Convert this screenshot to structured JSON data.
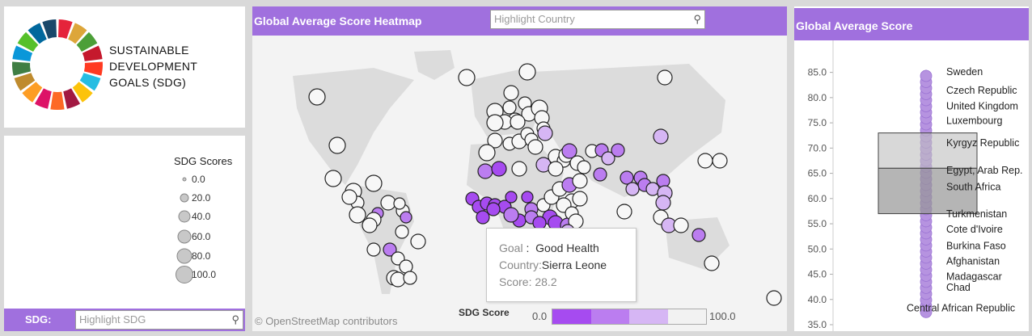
{
  "logo": {
    "title_lines": [
      "SUSTAINABLE",
      "DEVELOPMENT",
      "GOALS (SDG)"
    ]
  },
  "legend": {
    "title": "SDG Scores",
    "values": [
      "0.0",
      "20.0",
      "40.0",
      "60.0",
      "80.0",
      "100.0"
    ]
  },
  "sdg_filter": {
    "label": "SDG:",
    "placeholder": "Highlight SDG"
  },
  "map": {
    "title": "Global  Average Score Heatmap",
    "search_placeholder": "Highlight Country",
    "attribution": "© OpenStreetMap contributors",
    "score_legend": {
      "title": "SDG Score",
      "min": "0.0",
      "max": "100.0",
      "colors": [
        "#a64bf0",
        "#bb7df0",
        "#d6b6f4",
        "#f2f2f2"
      ]
    },
    "tooltip": {
      "goal_key": "Goal",
      "goal_sep": " :  ",
      "goal_value": "Good Health",
      "country_key": "Country:",
      "country_value": "Sierra Leone",
      "score_key": "Score:",
      "score_value": "28.2"
    }
  },
  "average_panel": {
    "title": "Global Average Score",
    "chart_data": {
      "type": "scatter",
      "ylim": [
        35,
        87.5
      ],
      "yticks": [
        "85.0",
        "80.0",
        "75.0",
        "70.0",
        "65.0",
        "60.0",
        "55.0",
        "50.0",
        "45.0",
        "40.0",
        "35.0"
      ],
      "box": {
        "q1": 57,
        "median": 66,
        "q3": 73
      },
      "labels": [
        {
          "country": "Sweden",
          "score": 85.1
        },
        {
          "country": "Czech Republic",
          "score": 81.4
        },
        {
          "country": "United Kingdom",
          "score": 78.3
        },
        {
          "country": "Luxembourg",
          "score": 75.4
        },
        {
          "country": "Kyrgyz Republic",
          "score": 71.0
        },
        {
          "country": "Egypt, Arab Rep.",
          "score": 65.6
        },
        {
          "country": "South Africa",
          "score": 62.3
        },
        {
          "country": "Turkmenistan",
          "score": 56.9
        },
        {
          "country": "Cote d'Ivoire",
          "score": 53.9
        },
        {
          "country": "Burkina Faso",
          "score": 50.6
        },
        {
          "country": "Afghanistan",
          "score": 47.6
        },
        {
          "country": "Madagascar",
          "score": 44.5
        },
        {
          "country": "Chad",
          "score": 42.4
        },
        {
          "country": "Central African Republic",
          "score": 38.3
        }
      ]
    }
  }
}
